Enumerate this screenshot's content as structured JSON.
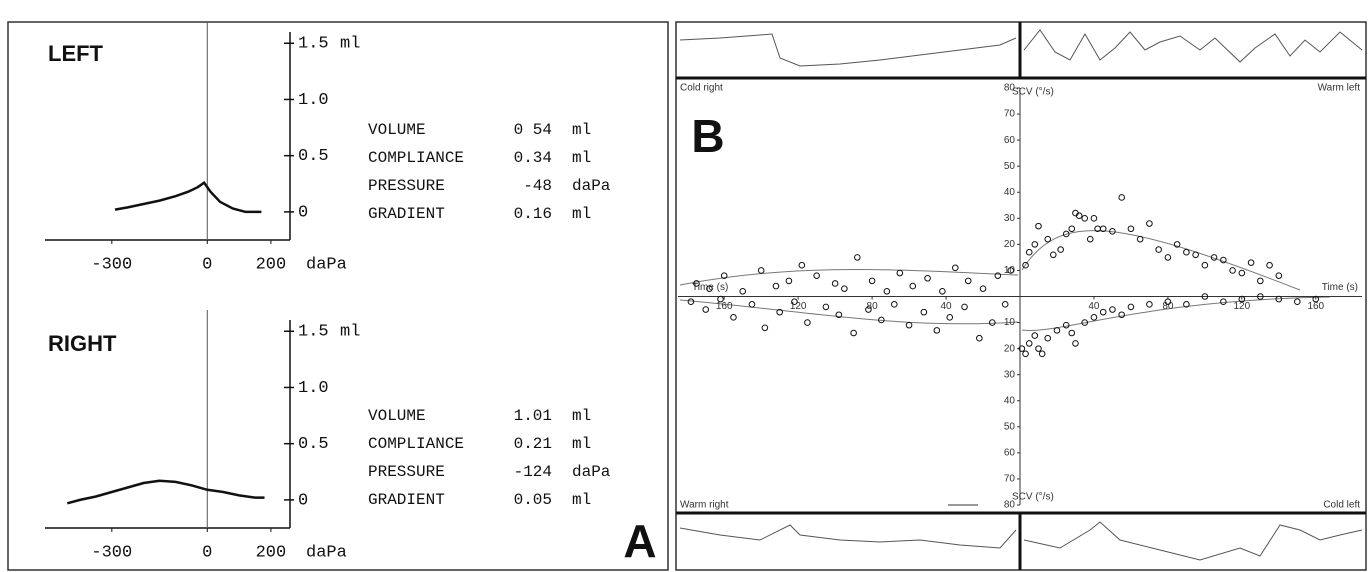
{
  "chart_data": [
    {
      "type": "line",
      "title": "LEFT",
      "x": [
        -290,
        -250,
        -200,
        -150,
        -100,
        -60,
        -30,
        -10,
        10,
        40,
        80,
        120,
        170
      ],
      "values": [
        0.02,
        0.04,
        0.07,
        0.1,
        0.14,
        0.18,
        0.22,
        0.26,
        0.18,
        0.09,
        0.03,
        0.0,
        0.0
      ],
      "color": "#111111",
      "xlim": [
        -510,
        260
      ],
      "xticks": [
        -300,
        0,
        200
      ],
      "x_unit": "daPa",
      "ylim": [
        -0.25,
        1.6
      ],
      "yticks": [
        0,
        0.5,
        {
          "value": 1,
          "label": "1.0"
        },
        1.5
      ],
      "y_unit": "ml",
      "readout": [
        [
          "VOLUME",
          "0 54",
          "ml"
        ],
        [
          "COMPLIANCE",
          "0.34",
          "ml"
        ],
        [
          "PRESSURE",
          "-48",
          "daPa"
        ],
        [
          "GRADIENT",
          "0.16",
          "ml"
        ]
      ]
    },
    {
      "type": "line",
      "title": "RIGHT",
      "x": [
        -440,
        -400,
        -350,
        -300,
        -250,
        -200,
        -150,
        -100,
        -50,
        0,
        50,
        100,
        150,
        180
      ],
      "values": [
        -0.03,
        0.0,
        0.03,
        0.07,
        0.11,
        0.15,
        0.17,
        0.16,
        0.13,
        0.09,
        0.07,
        0.04,
        0.02,
        0.02
      ],
      "color": "#111111",
      "xlim": [
        -510,
        260
      ],
      "xticks": [
        -300,
        0,
        200
      ],
      "x_unit": "daPa",
      "ylim": [
        -0.25,
        1.6
      ],
      "yticks": [
        0,
        0.5,
        {
          "value": 1,
          "label": "1.0"
        },
        1.5
      ],
      "y_unit": "ml",
      "readout": [
        [
          "VOLUME",
          "1.01",
          "ml"
        ],
        [
          "COMPLIANCE",
          "0.21",
          "ml"
        ],
        [
          "PRESSURE",
          "-124",
          "daPa"
        ],
        [
          "GRADIENT",
          "0.05",
          "ml"
        ]
      ],
      "panel_label": "A"
    },
    {
      "type": "scatter",
      "panel_label": "B",
      "x_label": "Time (s)",
      "y_label": "SCV (°/s)",
      "xlim": [
        -185,
        185
      ],
      "ylim": [
        -80,
        80
      ],
      "xticks": [
        {
          "value": -160,
          "label": "160"
        },
        {
          "value": -120,
          "label": "120"
        },
        {
          "value": -80,
          "label": "80"
        },
        {
          "value": -40,
          "label": "40"
        },
        40,
        80,
        120,
        160
      ],
      "yticks": [
        {
          "value": -80,
          "label": "80"
        },
        {
          "value": -70,
          "label": "70"
        },
        {
          "value": -60,
          "label": "60"
        },
        {
          "value": -50,
          "label": "50"
        },
        {
          "value": -40,
          "label": "40"
        },
        {
          "value": -30,
          "label": "30"
        },
        {
          "value": -20,
          "label": "20"
        },
        {
          "value": -10,
          "label": "10"
        },
        10,
        20,
        30,
        40,
        50,
        60,
        70,
        80
      ],
      "series": [
        {
          "name": "Cold right",
          "color": "#111111",
          "x": [
            -175,
            -168,
            -160,
            -150,
            -140,
            -132,
            -125,
            -118,
            -110,
            -100,
            -95,
            -88,
            -80,
            -72,
            -65,
            -58,
            -50,
            -42,
            -35,
            -28,
            -20,
            -12,
            -5
          ],
          "values": [
            5,
            3,
            8,
            2,
            10,
            4,
            6,
            12,
            8,
            5,
            3,
            15,
            6,
            2,
            9,
            4,
            7,
            2,
            11,
            6,
            3,
            8,
            10
          ]
        },
        {
          "name": "Warm left",
          "color": "#111111",
          "x": [
            3,
            5,
            8,
            10,
            15,
            18,
            22,
            25,
            28,
            30,
            32,
            35,
            38,
            40,
            42,
            45,
            50,
            55,
            60,
            65,
            70,
            75,
            80,
            85,
            90,
            95,
            100,
            105,
            110,
            115,
            120,
            125,
            130,
            135,
            140
          ],
          "values": [
            12,
            17,
            20,
            27,
            22,
            16,
            18,
            24,
            26,
            32,
            31,
            30,
            22,
            30,
            26,
            26,
            25,
            38,
            26,
            22,
            28,
            18,
            15,
            20,
            17,
            16,
            12,
            15,
            14,
            10,
            9,
            13,
            6,
            12,
            8
          ]
        },
        {
          "name": "Warm right",
          "color": "#111111",
          "x": [
            -178,
            -170,
            -162,
            -155,
            -145,
            -138,
            -130,
            -122,
            -115,
            -105,
            -98,
            -90,
            -82,
            -75,
            -68,
            -60,
            -52,
            -45,
            -38,
            -30,
            -22,
            -15,
            -8
          ],
          "values": [
            -2,
            -5,
            -1,
            -8,
            -3,
            -12,
            -6,
            -2,
            -10,
            -4,
            -7,
            -14,
            -5,
            -9,
            -3,
            -11,
            -6,
            -13,
            -8,
            -4,
            -16,
            -10,
            -3
          ]
        },
        {
          "name": "Cold left",
          "color": "#111111",
          "x": [
            1,
            3,
            5,
            8,
            10,
            12,
            15,
            20,
            25,
            28,
            30,
            35,
            40,
            45,
            50,
            55,
            60,
            70,
            80,
            90,
            100,
            110,
            120,
            130,
            140,
            150,
            160
          ],
          "values": [
            -20,
            -22,
            -18,
            -15,
            -20,
            -22,
            -16,
            -13,
            -11,
            -14,
            -18,
            -10,
            -8,
            -6,
            -5,
            -7,
            -4,
            -3,
            -2,
            -3,
            0,
            -2,
            -1,
            0,
            -1,
            -2,
            -1
          ]
        }
      ]
    }
  ]
}
